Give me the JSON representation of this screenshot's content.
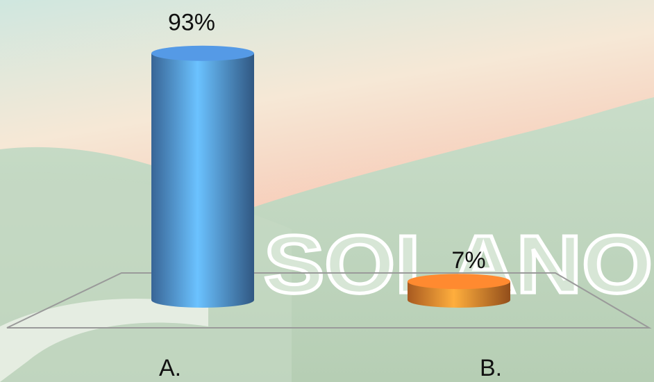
{
  "chart_data": {
    "type": "cylinder",
    "categories": [
      "A.",
      "B."
    ],
    "values": [
      93,
      7
    ],
    "value_labels": [
      "93%",
      "7%"
    ],
    "colors": [
      "#4a86c8",
      "#e0782a"
    ],
    "watermark": "SOLANO"
  }
}
